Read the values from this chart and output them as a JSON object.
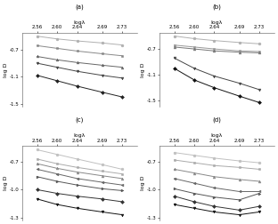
{
  "x": [
    2.56,
    2.6,
    2.64,
    2.69,
    2.73
  ],
  "subplots": [
    {
      "label": "(a)",
      "ylim": [
        -1.55,
        -0.45
      ],
      "yticks": [
        -1.5,
        -1.1,
        -0.7
      ],
      "ytick_labels": [
        "-1.5",
        "-1.1",
        "-0.7"
      ],
      "lines": [
        {
          "y": [
            -0.5,
            -0.54,
            -0.57,
            -0.6,
            -0.63
          ],
          "color": "#b0b0b0",
          "marker": "o",
          "ms": 2.0
        },
        {
          "y": [
            -0.64,
            -0.68,
            -0.72,
            -0.76,
            -0.79
          ],
          "color": "#888888",
          "marker": "s",
          "ms": 2.0
        },
        {
          "y": [
            -0.8,
            -0.85,
            -0.89,
            -0.93,
            -0.96
          ],
          "color": "#666666",
          "marker": "^",
          "ms": 2.0
        },
        {
          "y": [
            -0.9,
            -0.96,
            -1.02,
            -1.08,
            -1.12
          ],
          "color": "#444444",
          "marker": "v",
          "ms": 2.0
        },
        {
          "y": [
            -1.08,
            -1.16,
            -1.24,
            -1.33,
            -1.4
          ],
          "color": "#222222",
          "marker": "D",
          "ms": 2.0
        }
      ]
    },
    {
      "label": "(b)",
      "ylim": [
        -1.6,
        -0.45
      ],
      "yticks": [
        -1.5,
        -1.1,
        -0.7
      ],
      "ytick_labels": [
        "-1.5",
        "-1.1",
        "-0.7"
      ],
      "lines": [
        {
          "y": [
            -0.5,
            -0.54,
            -0.57,
            -0.6,
            -0.62
          ],
          "color": "#b0b0b0",
          "marker": "o",
          "ms": 2.0
        },
        {
          "y": [
            -0.64,
            -0.67,
            -0.7,
            -0.73,
            -0.74
          ],
          "color": "#999999",
          "marker": "s",
          "ms": 2.0
        },
        {
          "y": [
            -0.67,
            -0.7,
            -0.73,
            -0.75,
            -0.76
          ],
          "color": "#777777",
          "marker": "^",
          "ms": 2.0
        },
        {
          "y": [
            -0.84,
            -1.0,
            -1.12,
            -1.23,
            -1.33
          ],
          "color": "#444444",
          "marker": "v",
          "ms": 2.0
        },
        {
          "y": [
            -1.0,
            -1.18,
            -1.3,
            -1.43,
            -1.53
          ],
          "color": "#111111",
          "marker": "D",
          "ms": 2.0
        }
      ]
    },
    {
      "label": "(c)",
      "ylim": [
        -1.33,
        -0.53
      ],
      "yticks": [
        -1.3,
        -1.0,
        -0.7
      ],
      "ytick_labels": [
        "-1.3",
        "-1.0",
        "-0.7"
      ],
      "lines": [
        {
          "y": [
            -0.57,
            -0.62,
            -0.67,
            -0.73,
            -0.78
          ],
          "color": "#c0c0c0",
          "marker": "o",
          "ms": 2.0
        },
        {
          "y": [
            -0.67,
            -0.72,
            -0.76,
            -0.8,
            -0.83
          ],
          "color": "#aaaaaa",
          "marker": "s",
          "ms": 2.0
        },
        {
          "y": [
            -0.72,
            -0.77,
            -0.81,
            -0.85,
            -0.88
          ],
          "color": "#888888",
          "marker": "^",
          "ms": 2.0
        },
        {
          "y": [
            -0.78,
            -0.83,
            -0.88,
            -0.92,
            -0.95
          ],
          "color": "#666666",
          "marker": "<",
          "ms": 2.0
        },
        {
          "y": [
            -0.86,
            -0.91,
            -0.95,
            -0.99,
            -1.01
          ],
          "color": "#555555",
          "marker": ">",
          "ms": 2.0
        },
        {
          "y": [
            -1.0,
            -1.04,
            -1.07,
            -1.1,
            -1.13
          ],
          "color": "#333333",
          "marker": "D",
          "ms": 2.0
        },
        {
          "y": [
            -1.1,
            -1.16,
            -1.2,
            -1.24,
            -1.27
          ],
          "color": "#111111",
          "marker": "v",
          "ms": 2.0
        }
      ]
    },
    {
      "label": "(d)",
      "ylim": [
        -1.33,
        -0.53
      ],
      "yticks": [
        -1.3,
        -1.0,
        -0.7
      ],
      "ytick_labels": [
        "-1.3",
        "-1.0",
        "-0.7"
      ],
      "lines": [
        {
          "y": [
            -0.6,
            -0.63,
            -0.66,
            -0.69,
            -0.71
          ],
          "color": "#c0c0c0",
          "marker": "o",
          "ms": 2.0
        },
        {
          "y": [
            -0.68,
            -0.71,
            -0.74,
            -0.76,
            -0.78
          ],
          "color": "#aaaaaa",
          "marker": "s",
          "ms": 2.0
        },
        {
          "y": [
            -0.78,
            -0.82,
            -0.86,
            -0.89,
            -0.91
          ],
          "color": "#888888",
          "marker": "^",
          "ms": 2.0
        },
        {
          "y": [
            -0.88,
            -0.93,
            -0.98,
            -1.02,
            -1.02
          ],
          "color": "#666666",
          "marker": "<",
          "ms": 2.0
        },
        {
          "y": [
            -0.99,
            -1.04,
            -1.08,
            -1.11,
            -1.04
          ],
          "color": "#555555",
          "marker": ">",
          "ms": 2.0
        },
        {
          "y": [
            -1.07,
            -1.13,
            -1.18,
            -1.22,
            -1.18
          ],
          "color": "#333333",
          "marker": "D",
          "ms": 2.0
        },
        {
          "y": [
            -1.16,
            -1.2,
            -1.24,
            -1.27,
            -1.24
          ],
          "color": "#111111",
          "marker": "v",
          "ms": 2.0
        }
      ]
    }
  ],
  "x_ticks": [
    2.56,
    2.6,
    2.64,
    2.69,
    2.73
  ],
  "x_tick_labels": [
    "2.56",
    "2.60",
    "2.64",
    "2.69",
    "2.73"
  ],
  "xlabel": "logλ",
  "ylabel": "log D"
}
